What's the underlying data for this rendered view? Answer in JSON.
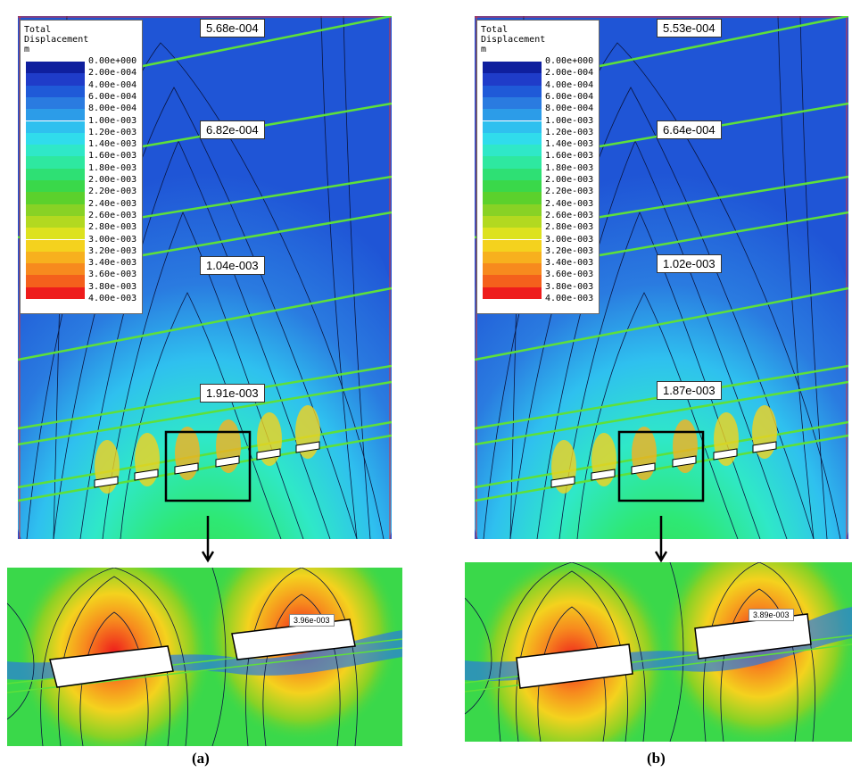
{
  "legend": {
    "title_line1": "Total",
    "title_line2": "Displacement",
    "unit": "m",
    "levels": [
      "0.00e+000",
      "2.00e-004",
      "4.00e-004",
      "6.00e-004",
      "8.00e-004",
      "1.00e-003",
      "1.20e-003",
      "1.40e-003",
      "1.60e-003",
      "1.80e-003",
      "2.00e-003",
      "2.20e-003",
      "2.40e-003",
      "2.60e-003",
      "2.80e-003",
      "3.00e-003",
      "3.20e-003",
      "3.40e-003",
      "3.60e-003",
      "3.80e-003",
      "4.00e-003"
    ],
    "colors": [
      "#0f1f9e",
      "#1f3cc9",
      "#1f5ad8",
      "#2a7be0",
      "#2c9ce8",
      "#2fc0ef",
      "#30dcec",
      "#2fe8c8",
      "#2ee8a0",
      "#2ee074",
      "#3ad84a",
      "#5bd12c",
      "#88d225",
      "#b2d920",
      "#dde21e",
      "#f4d21e",
      "#f7b01e",
      "#f78a1e",
      "#f4601c",
      "#ee1c1c"
    ]
  },
  "panel_a": {
    "label": "(a)",
    "callouts": [
      "5.68e-004",
      "6.82e-004",
      "1.04e-003",
      "1.91e-003"
    ],
    "zoom_value": "3.96e-003"
  },
  "panel_b": {
    "label": "(b)",
    "callouts": [
      "5.53e-004",
      "6.64e-004",
      "1.02e-003",
      "1.87e-003"
    ],
    "zoom_value": "3.89e-003"
  },
  "palette": {
    "background_blue": "#1f55d6",
    "seam_green": "#5ee03a",
    "support_red": "#e03030"
  }
}
